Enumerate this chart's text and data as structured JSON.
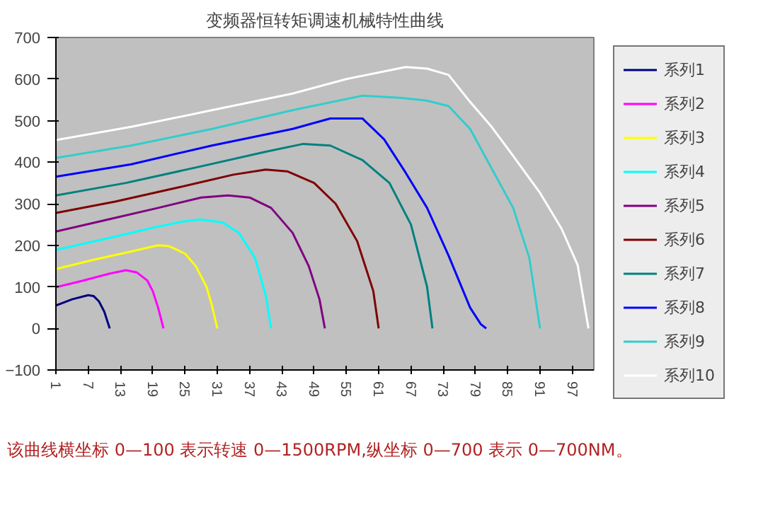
{
  "chart_data": {
    "type": "line",
    "title": "变频器恒转矩调速机械特性曲线",
    "annotations": [
      "该曲线横坐标 0—100 表示转速 0—1500RPM,纵坐标 0—700 表示 0—700NM。"
    ],
    "xlim": [
      1,
      101
    ],
    "xticks": [
      1,
      7,
      13,
      19,
      25,
      31,
      37,
      43,
      49,
      55,
      61,
      67,
      73,
      79,
      85,
      91,
      97
    ],
    "ylim": [
      -100,
      700
    ],
    "yticks": [
      -100,
      0,
      100,
      200,
      300,
      400,
      500,
      600,
      700
    ],
    "grid": false,
    "legend": "right",
    "series": [
      {
        "name": "系列1",
        "color": "#000080",
        "x": [
          1,
          4,
          7,
          8,
          9,
          10,
          11
        ],
        "values": [
          55,
          70,
          80,
          78,
          65,
          40,
          0
        ]
      },
      {
        "name": "系列2",
        "color": "#ff00ff",
        "x": [
          1,
          6,
          11,
          14,
          16,
          18,
          19,
          20,
          21
        ],
        "values": [
          99,
          115,
          132,
          140,
          135,
          115,
          90,
          50,
          0
        ]
      },
      {
        "name": "系列3",
        "color": "#ffff00",
        "x": [
          1,
          8,
          15,
          20,
          22,
          25,
          27,
          29,
          30,
          31
        ],
        "values": [
          143,
          165,
          185,
          200,
          198,
          180,
          150,
          100,
          55,
          0
        ]
      },
      {
        "name": "系列4",
        "color": "#00ffff",
        "x": [
          1,
          10,
          20,
          25,
          28,
          32,
          35,
          38,
          40,
          41
        ],
        "values": [
          189,
          215,
          245,
          258,
          262,
          255,
          230,
          170,
          80,
          0
        ]
      },
      {
        "name": "系列5",
        "color": "#800080",
        "x": [
          1,
          10,
          20,
          28,
          33,
          37,
          41,
          45,
          48,
          50,
          51
        ],
        "values": [
          233,
          260,
          290,
          315,
          320,
          315,
          290,
          230,
          150,
          70,
          0
        ]
      },
      {
        "name": "系列6",
        "color": "#800000",
        "x": [
          1,
          12,
          24,
          34,
          40,
          44,
          49,
          53,
          57,
          60,
          61
        ],
        "values": [
          278,
          305,
          340,
          370,
          382,
          378,
          350,
          300,
          210,
          90,
          0
        ]
      },
      {
        "name": "系列7",
        "color": "#008080",
        "x": [
          1,
          14,
          28,
          40,
          47,
          52,
          58,
          63,
          67,
          70,
          71
        ],
        "values": [
          320,
          350,
          390,
          425,
          444,
          440,
          405,
          350,
          250,
          100,
          0
        ]
      },
      {
        "name": "系列8",
        "color": "#0000ff",
        "x": [
          1,
          15,
          30,
          45,
          52,
          58,
          62,
          66,
          70,
          74,
          78,
          80,
          81
        ],
        "values": [
          365,
          395,
          440,
          480,
          505,
          505,
          455,
          375,
          290,
          175,
          50,
          10,
          0
        ]
      },
      {
        "name": "系列9",
        "color": "#33cccc",
        "x": [
          1,
          15,
          30,
          45,
          58,
          65,
          70,
          74,
          78,
          82,
          86,
          89,
          91
        ],
        "values": [
          410,
          440,
          480,
          525,
          560,
          555,
          548,
          535,
          480,
          385,
          290,
          170,
          0
        ]
      },
      {
        "name": "系列10",
        "color": "#ffffff",
        "x": [
          1,
          15,
          30,
          45,
          55,
          66,
          70,
          74,
          78,
          82,
          86,
          91,
          95,
          98,
          100
        ],
        "values": [
          453,
          485,
          525,
          565,
          600,
          629,
          625,
          610,
          545,
          485,
          415,
          326,
          240,
          152,
          0
        ]
      }
    ]
  }
}
